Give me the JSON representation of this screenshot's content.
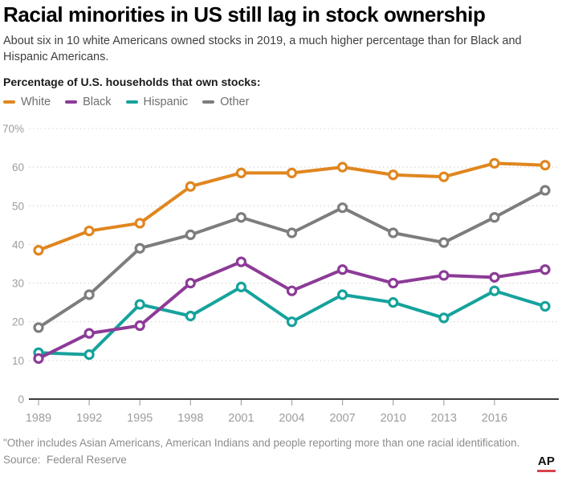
{
  "header": {
    "title": "Racial minorities in US still lag in stock ownership",
    "subtitle": "About six in 10 white Americans owned stocks in 2019, a much higher percentage than for Black and Hispanic Americans.",
    "caption": "Percentage of U.S. households that own stocks:"
  },
  "chart_data": {
    "type": "line",
    "x": [
      1989,
      1992,
      1995,
      1998,
      2001,
      2004,
      2007,
      2010,
      2013,
      2016,
      2019
    ],
    "x_tick_labels": [
      "1989",
      "1992",
      "1995",
      "1998",
      "2001",
      "2004",
      "2007",
      "2010",
      "2013",
      "2016"
    ],
    "series": [
      {
        "name": "White",
        "color": "#E0861F",
        "values": [
          38.5,
          43.5,
          45.5,
          55,
          58.5,
          58.5,
          60,
          58,
          57.5,
          61,
          60.5
        ]
      },
      {
        "name": "Black",
        "color": "#8C3B97",
        "values": [
          10.5,
          17,
          19,
          30,
          35.5,
          28,
          33.5,
          30,
          32,
          31.5,
          33.5
        ]
      },
      {
        "name": "Hispanic",
        "color": "#16A29C",
        "values": [
          12,
          11.5,
          24.5,
          21.5,
          29,
          20,
          27,
          25,
          21,
          28,
          24
        ]
      },
      {
        "name": "Other",
        "color": "#7D7D7D",
        "values": [
          18.5,
          27,
          39,
          42.5,
          47,
          43,
          49.5,
          43,
          40.5,
          47,
          54
        ]
      }
    ],
    "ylim": [
      0,
      70
    ],
    "ytick_interval": 10,
    "ytick_top_label": "70%",
    "grid": "horizontal-dotted",
    "legend_position": "top-left"
  },
  "footer": {
    "note": "\"Other includes Asian Americans, American Indians and people reporting more than one racial identification.",
    "source": "Source:  Federal Reserve",
    "ap_label": "AP",
    "ap_underline_color": "#D8434E"
  }
}
